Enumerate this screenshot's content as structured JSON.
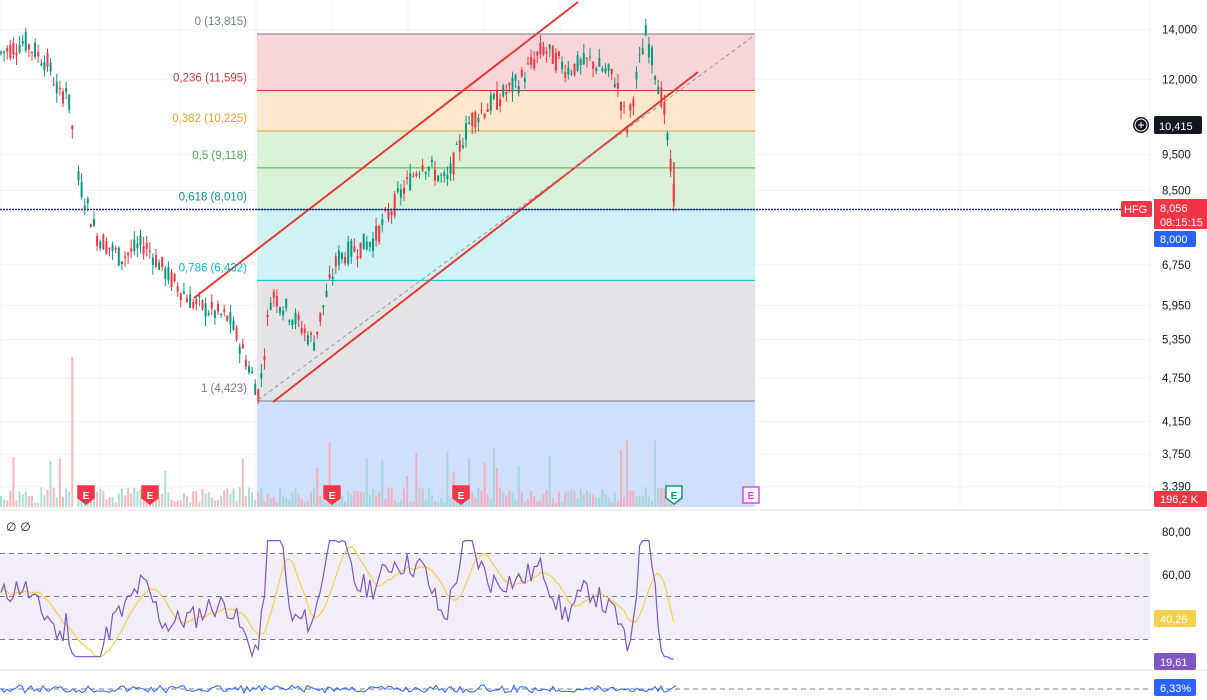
{
  "chart_data": [
    {
      "type": "candlestick",
      "symbol": "HFG",
      "price_axis": {
        "ticks": [
          "14,000",
          "12,000",
          "9,500",
          "8,500",
          "6,750",
          "5,950",
          "5,350",
          "4,750",
          "4,150",
          "3,750",
          "3,390"
        ],
        "log_scale": true
      },
      "fibonacci_levels": [
        {
          "label": "0 (13,815)",
          "value": 13815,
          "color": "#787b86",
          "fill": "#f7d3d6"
        },
        {
          "label": "0,236 (11,595)",
          "value": 11595,
          "color": "#c43a3a",
          "fill": "#fde7c9"
        },
        {
          "label": "0,382 (10,225)",
          "value": 10225,
          "color": "#e4a320",
          "fill": "#d9efd6"
        },
        {
          "label": "0,5 (9,118)",
          "value": 9118,
          "color": "#4caf50",
          "fill": "#d9efd6"
        },
        {
          "label": "0,618 (8,010)",
          "value": 8010,
          "color": "#089981",
          "fill": "#ccf1f4"
        },
        {
          "label": "0,786 (6,432)",
          "value": 6432,
          "color": "#00bcd4",
          "fill": "#e3e3e5"
        },
        {
          "label": "1 (4,423)",
          "value": 4423,
          "color": "#787b86",
          "fill": "#cddcff"
        }
      ],
      "last_price_tag": {
        "symbol": "HFG",
        "price": "8,056",
        "countdown": "08:15:15",
        "color": "#f23645"
      },
      "crosshair_tag": {
        "price": "10,415"
      },
      "level_tag": {
        "price": "8,000",
        "color": "#2962ff"
      },
      "volume_tag": {
        "value": "196,2 K",
        "color": "#f23645"
      },
      "events": [
        "E",
        "E",
        "E",
        "E",
        "E",
        "E"
      ],
      "price_series_approx": [
        {
          "x": 0.0,
          "y": 13000
        },
        {
          "x": 0.02,
          "y": 13500
        },
        {
          "x": 0.04,
          "y": 12600
        },
        {
          "x": 0.05,
          "y": 11300
        },
        {
          "x": 0.055,
          "y": 11800
        },
        {
          "x": 0.065,
          "y": 8800
        },
        {
          "x": 0.08,
          "y": 7400
        },
        {
          "x": 0.1,
          "y": 6900
        },
        {
          "x": 0.12,
          "y": 7200
        },
        {
          "x": 0.14,
          "y": 6500
        },
        {
          "x": 0.16,
          "y": 6000
        },
        {
          "x": 0.19,
          "y": 5700
        },
        {
          "x": 0.215,
          "y": 4500
        },
        {
          "x": 0.225,
          "y": 6200
        },
        {
          "x": 0.26,
          "y": 5300
        },
        {
          "x": 0.28,
          "y": 6900
        },
        {
          "x": 0.31,
          "y": 7300
        },
        {
          "x": 0.33,
          "y": 8300
        },
        {
          "x": 0.35,
          "y": 9300
        },
        {
          "x": 0.37,
          "y": 8700
        },
        {
          "x": 0.39,
          "y": 10600
        },
        {
          "x": 0.41,
          "y": 11200
        },
        {
          "x": 0.43,
          "y": 11900
        },
        {
          "x": 0.45,
          "y": 13200
        },
        {
          "x": 0.47,
          "y": 12400
        },
        {
          "x": 0.49,
          "y": 12700
        },
        {
          "x": 0.51,
          "y": 12000
        },
        {
          "x": 0.52,
          "y": 10300
        },
        {
          "x": 0.535,
          "y": 13800
        },
        {
          "x": 0.55,
          "y": 11000
        },
        {
          "x": 0.555,
          "y": 9200
        },
        {
          "x": 0.56,
          "y": 8056
        }
      ]
    },
    {
      "type": "line",
      "name": "oscillator",
      "header": "∅ ∅",
      "y_ticks": [
        "80,00",
        "60,00"
      ],
      "bands": [
        70,
        50,
        30
      ],
      "series": [
        {
          "value_tag": "40,26",
          "color": "#f5d04a"
        },
        {
          "value_tag": "19,61",
          "color": "#7e57c2"
        }
      ]
    },
    {
      "type": "line",
      "name": "lower-indicator",
      "series": [
        {
          "value_tag": "6,33%",
          "color": "#2962ff"
        }
      ]
    }
  ]
}
